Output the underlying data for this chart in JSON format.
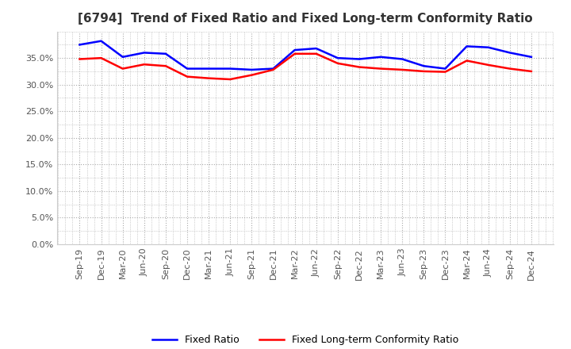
{
  "title": "[6794]  Trend of Fixed Ratio and Fixed Long-term Conformity Ratio",
  "x_labels": [
    "Sep-19",
    "Dec-19",
    "Mar-20",
    "Jun-20",
    "Sep-20",
    "Dec-20",
    "Mar-21",
    "Jun-21",
    "Sep-21",
    "Dec-21",
    "Mar-22",
    "Jun-22",
    "Sep-22",
    "Dec-22",
    "Mar-23",
    "Jun-23",
    "Sep-23",
    "Dec-23",
    "Mar-24",
    "Jun-24",
    "Sep-24",
    "Dec-24"
  ],
  "fixed_ratio": [
    0.375,
    0.382,
    0.352,
    0.36,
    0.358,
    0.33,
    0.33,
    0.33,
    0.328,
    0.33,
    0.365,
    0.368,
    0.35,
    0.348,
    0.352,
    0.348,
    0.335,
    0.33,
    0.372,
    0.37,
    0.36,
    0.352
  ],
  "fixed_lt_ratio": [
    0.348,
    0.35,
    0.33,
    0.338,
    0.335,
    0.315,
    0.312,
    0.31,
    0.318,
    0.328,
    0.358,
    0.358,
    0.34,
    0.333,
    0.33,
    0.328,
    0.325,
    0.324,
    0.345,
    0.337,
    0.33,
    0.325
  ],
  "ylim": [
    0.0,
    0.4
  ],
  "yticks": [
    0.0,
    0.05,
    0.1,
    0.15,
    0.2,
    0.25,
    0.3,
    0.35
  ],
  "line_color_fixed": "#0000FF",
  "line_color_lt": "#FF0000",
  "background_color": "#FFFFFF",
  "grid_color": "#AAAAAA",
  "legend_fixed": "Fixed Ratio",
  "legend_lt": "Fixed Long-term Conformity Ratio",
  "title_color": "#333333",
  "tick_label_color": "#555555"
}
